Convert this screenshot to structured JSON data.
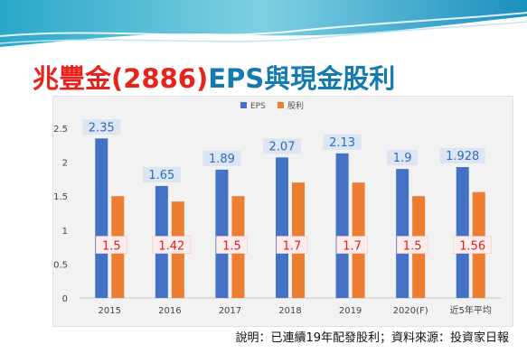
{
  "title": {
    "company": "兆豐金",
    "code": "(2886)",
    "subject": "EPS與現金股利"
  },
  "note": "說明：已連續19年配發股利；資料來源：投資家日報",
  "colors": {
    "eps": "#4472c4",
    "dividend": "#ed7d31",
    "title_red": "#e8231d",
    "title_teal": "#137bb0",
    "eps_label_bg": "#dbe5f3",
    "eps_label_text": "#2f6db5",
    "div_label_bg": "#fdecec",
    "div_label_text": "#e02020"
  },
  "chart_data": {
    "type": "bar",
    "categories": [
      "2015",
      "2016",
      "2017",
      "2018",
      "2019",
      "2020(F)",
      "近5年平均"
    ],
    "series": [
      {
        "name": "EPS",
        "values": [
          2.35,
          1.65,
          1.89,
          2.07,
          2.13,
          1.9,
          1.928
        ]
      },
      {
        "name": "股利",
        "values": [
          1.5,
          1.42,
          1.5,
          1.7,
          1.7,
          1.5,
          1.56
        ]
      }
    ],
    "y_ticks": [
      "0",
      "0.5",
      "1",
      "1.5",
      "2",
      "2.5"
    ],
    "ylim": [
      0,
      2.5
    ],
    "legend": "top-center",
    "grid": false
  }
}
